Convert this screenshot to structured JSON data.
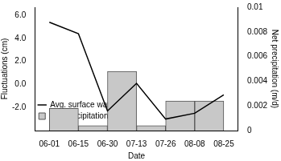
{
  "chart_data": {
    "type": "bar_line",
    "x_label": "Date",
    "y_label": "Fluctuations (cm)",
    "y2_label": "Net precipitation (m/d)",
    "categories": [
      "06-01",
      "06-15",
      "06-30",
      "07-13",
      "07-26",
      "08-08",
      "08-25"
    ],
    "series": [
      {
        "name": "Net precipitation",
        "type": "bar",
        "axis": "y2",
        "color": "#c8c8c8",
        "values": [
          0.0018,
          0.0004,
          0.0048,
          0.0004,
          0.0024,
          0.0024,
          null
        ]
      },
      {
        "name": "Avg. surface water level",
        "type": "line",
        "axis": "y",
        "color": "#000000",
        "values": [
          5.4,
          4.4,
          -2.3,
          0.1,
          -3.0,
          -2.5,
          -0.9
        ]
      }
    ],
    "ylim": [
      -4,
      6.7
    ],
    "yticks": [
      {
        "value": -2,
        "label": "-2.0"
      },
      {
        "value": 0,
        "label": "0.0"
      },
      {
        "value": 2,
        "label": "2.0"
      },
      {
        "value": 4,
        "label": "4.0"
      },
      {
        "value": 6,
        "label": "6.0"
      }
    ],
    "y2lim": [
      0,
      0.01
    ],
    "y2ticks": [
      0,
      0.002,
      0.004,
      0.006,
      0.008,
      0.01
    ],
    "grid": false,
    "legend": "upper right"
  }
}
